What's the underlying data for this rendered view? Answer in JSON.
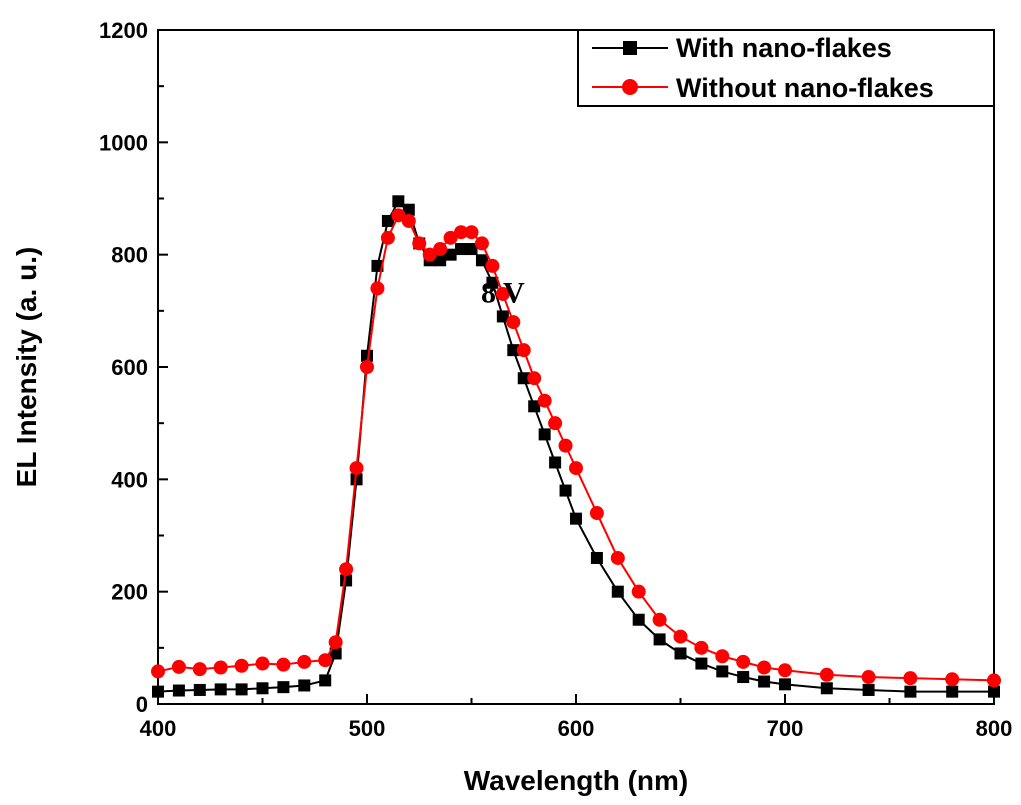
{
  "chart_data": {
    "type": "scatter",
    "title": "",
    "xlabel": "Wavelength (nm)",
    "ylabel": "EL Intensity (a. u.)",
    "xlim": [
      400,
      800
    ],
    "ylim": [
      0,
      1200
    ],
    "x_ticks": [
      400,
      500,
      600,
      700,
      800
    ],
    "y_ticks": [
      0,
      200,
      400,
      600,
      800,
      1000,
      1200
    ],
    "grid": false,
    "legend_position": "top-right",
    "annotations": [
      {
        "text": "8 V",
        "x": 565,
        "y": 715
      }
    ],
    "series": [
      {
        "name": "With nano-flakes",
        "color": "#000000",
        "marker": "square",
        "x": [
          400,
          410,
          420,
          430,
          440,
          450,
          460,
          470,
          480,
          485,
          490,
          495,
          500,
          505,
          510,
          515,
          520,
          525,
          530,
          535,
          540,
          545,
          550,
          555,
          560,
          565,
          570,
          575,
          580,
          585,
          590,
          595,
          600,
          610,
          620,
          630,
          640,
          650,
          660,
          670,
          680,
          690,
          700,
          720,
          740,
          760,
          780,
          800
        ],
        "y": [
          22,
          24,
          25,
          26,
          26,
          28,
          30,
          33,
          42,
          90,
          220,
          400,
          620,
          780,
          860,
          895,
          880,
          820,
          790,
          790,
          800,
          810,
          810,
          790,
          750,
          690,
          630,
          580,
          530,
          480,
          430,
          380,
          330,
          260,
          200,
          150,
          115,
          90,
          72,
          58,
          48,
          40,
          35,
          28,
          25,
          22,
          22,
          22
        ]
      },
      {
        "name": "Without nano-flakes",
        "color": "#ff0000",
        "marker": "circle",
        "x": [
          400,
          410,
          420,
          430,
          440,
          450,
          460,
          470,
          480,
          485,
          490,
          495,
          500,
          505,
          510,
          515,
          520,
          525,
          530,
          535,
          540,
          545,
          550,
          555,
          560,
          565,
          570,
          575,
          580,
          585,
          590,
          595,
          600,
          610,
          620,
          630,
          640,
          650,
          660,
          670,
          680,
          690,
          700,
          720,
          740,
          760,
          780,
          800
        ],
        "y": [
          58,
          66,
          62,
          65,
          68,
          72,
          70,
          75,
          78,
          110,
          240,
          420,
          600,
          740,
          830,
          870,
          860,
          820,
          800,
          810,
          830,
          840,
          840,
          820,
          780,
          730,
          680,
          630,
          580,
          540,
          500,
          460,
          420,
          340,
          260,
          200,
          150,
          120,
          100,
          85,
          75,
          65,
          60,
          52,
          48,
          46,
          44,
          42
        ]
      }
    ]
  }
}
